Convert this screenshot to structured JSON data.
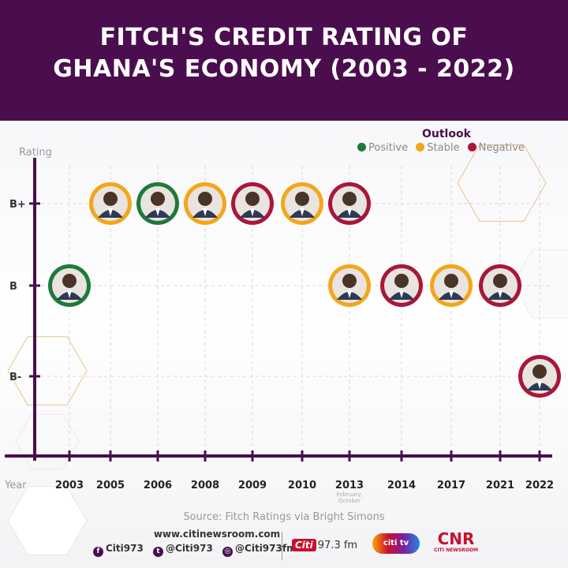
{
  "title_lines": [
    "FITCH'S CREDIT RATING OF",
    "GHANA'S ECONOMY (2003 - 2022)"
  ],
  "legend": {
    "title": "Outlook",
    "items": [
      {
        "label": "Positive",
        "color": "#1f7a3a"
      },
      {
        "label": "Stable",
        "color": "#f2a71b"
      },
      {
        "label": "Negative",
        "color": "#a8173a"
      }
    ]
  },
  "chart_data": {
    "type": "scatter",
    "ylabel": "Rating",
    "xlabel": "Year",
    "y_categories": [
      "B-",
      "B",
      "B+"
    ],
    "x_categories": [
      "2003",
      "2005",
      "2006",
      "2008",
      "2009",
      "2010",
      "2013",
      "2014",
      "2017",
      "2021",
      "2022"
    ],
    "annotations": [
      {
        "x": "2013",
        "text": "February, October"
      }
    ],
    "points": [
      {
        "year": "2003",
        "rating": "B",
        "outlook": "Positive"
      },
      {
        "year": "2005",
        "rating": "B+",
        "outlook": "Stable"
      },
      {
        "year": "2006",
        "rating": "B+",
        "outlook": "Positive"
      },
      {
        "year": "2008",
        "rating": "B+",
        "outlook": "Stable"
      },
      {
        "year": "2009",
        "rating": "B+",
        "outlook": "Negative"
      },
      {
        "year": "2010",
        "rating": "B+",
        "outlook": "Stable"
      },
      {
        "year": "2013",
        "rating": "B+",
        "outlook": "Negative"
      },
      {
        "year": "2013",
        "rating": "B",
        "outlook": "Stable"
      },
      {
        "year": "2014",
        "rating": "B",
        "outlook": "Negative"
      },
      {
        "year": "2017",
        "rating": "B",
        "outlook": "Stable"
      },
      {
        "year": "2021",
        "rating": "B",
        "outlook": "Negative"
      },
      {
        "year": "2022",
        "rating": "B-",
        "outlook": "Negative"
      }
    ]
  },
  "source": "Source: Fitch Ratings via Bright Simons",
  "footer": {
    "website": "www.citinewsroom.com",
    "socials": [
      {
        "icon": "facebook-icon",
        "glyph": "f",
        "handle": "Citi973"
      },
      {
        "icon": "twitter-icon",
        "glyph": "t",
        "handle": "@Citi973"
      },
      {
        "icon": "instagram-icon",
        "glyph": "◎",
        "handle": "@Citi973fm"
      }
    ],
    "citi_logo": "Citi",
    "citi_freq": "97.3 fm",
    "citi_tv": "citi tv",
    "cnr": "CNR",
    "cnr_sub": "CITI NEWSROOM"
  }
}
